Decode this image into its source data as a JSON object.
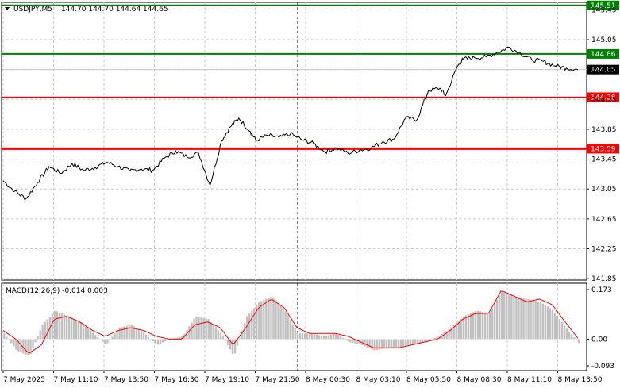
{
  "header": {
    "symbol_tf": "USDJPY,M5",
    "ohlc": "144.70 144.70 144.64 144.65"
  },
  "macd_header": "MACD(12,26,9) -0.014 0.003",
  "colors": {
    "price_line": "#000000",
    "support_resistance": "#ff0000",
    "target": "#008000",
    "histogram": "#c0c0c0",
    "signal": "#ff0000",
    "grid": "#c8c8c8"
  },
  "chart_data": [
    {
      "type": "line",
      "title": "USDJPY,M5",
      "x_tick_labels": [
        "7 May 2025",
        "7 May 11:10",
        "7 May 13:50",
        "7 May 16:30",
        "7 May 19:10",
        "7 May 21:50",
        "8 May 00:30",
        "8 May 03:10",
        "8 May 05:50",
        "8 May 08:30",
        "8 May 11:10",
        "8 May 13:50"
      ],
      "y_tick_labels": [
        "145.45",
        "145.05",
        "144.65",
        "144.25",
        "143.85",
        "143.45",
        "143.05",
        "142.65",
        "142.25",
        "141.85"
      ],
      "ylim": [
        141.83,
        145.55
      ],
      "grid": true,
      "current_price": "144.65",
      "levels": [
        {
          "label": "145.51",
          "value": 145.51,
          "kind": "target"
        },
        {
          "label": "144.86",
          "value": 144.86,
          "kind": "target"
        },
        {
          "label": "144.28",
          "value": 144.28,
          "kind": "level"
        },
        {
          "label": "143.59",
          "value": 143.59,
          "kind": "level"
        }
      ],
      "series": [
        {
          "x": [
            0,
            0.02,
            0.04,
            0.06,
            0.08,
            0.1,
            0.12,
            0.14,
            0.16,
            0.18,
            0.2,
            0.22,
            0.24,
            0.26,
            0.28,
            0.3,
            0.32,
            0.34,
            0.36,
            0.38,
            0.395,
            0.41,
            0.43,
            0.44,
            0.46,
            0.48,
            0.5,
            0.52,
            0.54,
            0.56,
            0.58,
            0.6,
            0.62,
            0.64,
            0.66,
            0.68,
            0.7,
            0.72,
            0.74,
            0.76,
            0.77,
            0.79,
            0.8,
            0.82,
            0.84,
            0.86,
            0.88,
            0.9,
            0.92,
            0.94,
            0.96,
            0.98,
            1.0
          ],
          "values": [
            143.16,
            143.02,
            142.92,
            143.14,
            143.35,
            143.26,
            143.39,
            143.3,
            143.34,
            143.41,
            143.35,
            143.29,
            143.32,
            143.3,
            143.46,
            143.56,
            143.48,
            143.53,
            143.1,
            143.7,
            143.88,
            144.0,
            143.82,
            143.7,
            143.77,
            143.74,
            143.79,
            143.71,
            143.66,
            143.55,
            143.6,
            143.53,
            143.57,
            143.6,
            143.68,
            143.72,
            144.0,
            143.98,
            144.37,
            144.4,
            144.3,
            144.69,
            144.79,
            144.81,
            144.82,
            144.88,
            144.95,
            144.87,
            144.78,
            144.76,
            144.7,
            144.67,
            144.65
          ]
        }
      ]
    },
    {
      "type": "bar",
      "title": "MACD(12,26,9) -0.014 0.003",
      "y_tick_labels": [
        "0.173",
        "0.00",
        "-0.093"
      ],
      "ylim": [
        -0.093,
        0.173
      ],
      "series": [
        {
          "name": "MACD",
          "values": [
            0.02,
            -0.04,
            -0.06,
            0.05,
            0.1,
            0.08,
            0.06,
            0.02,
            -0.02,
            0.04,
            0.05,
            0.02,
            -0.02,
            0.0,
            0.01,
            0.08,
            0.07,
            0.02,
            -0.06,
            0.08,
            0.13,
            0.15,
            0.1,
            0.02,
            0.02,
            0.01,
            0.02,
            -0.01,
            -0.02,
            -0.04,
            -0.03,
            -0.03,
            -0.02,
            -0.01,
            0.01,
            0.04,
            0.08,
            0.1,
            0.09,
            0.17,
            0.15,
            0.14,
            0.13,
            0.1,
            0.04,
            -0.014
          ]
        },
        {
          "name": "Signal",
          "values": [
            0.03,
            0.0,
            -0.05,
            -0.02,
            0.07,
            0.08,
            0.06,
            0.03,
            0.01,
            0.03,
            0.04,
            0.03,
            0.01,
            0.0,
            0.0,
            0.05,
            0.06,
            0.04,
            -0.02,
            0.04,
            0.11,
            0.14,
            0.11,
            0.04,
            0.02,
            0.02,
            0.02,
            0.01,
            -0.01,
            -0.03,
            -0.03,
            -0.03,
            -0.02,
            -0.01,
            0.0,
            0.03,
            0.07,
            0.09,
            0.09,
            0.17,
            0.15,
            0.13,
            0.14,
            0.12,
            0.06,
            0.003
          ]
        }
      ]
    }
  ]
}
